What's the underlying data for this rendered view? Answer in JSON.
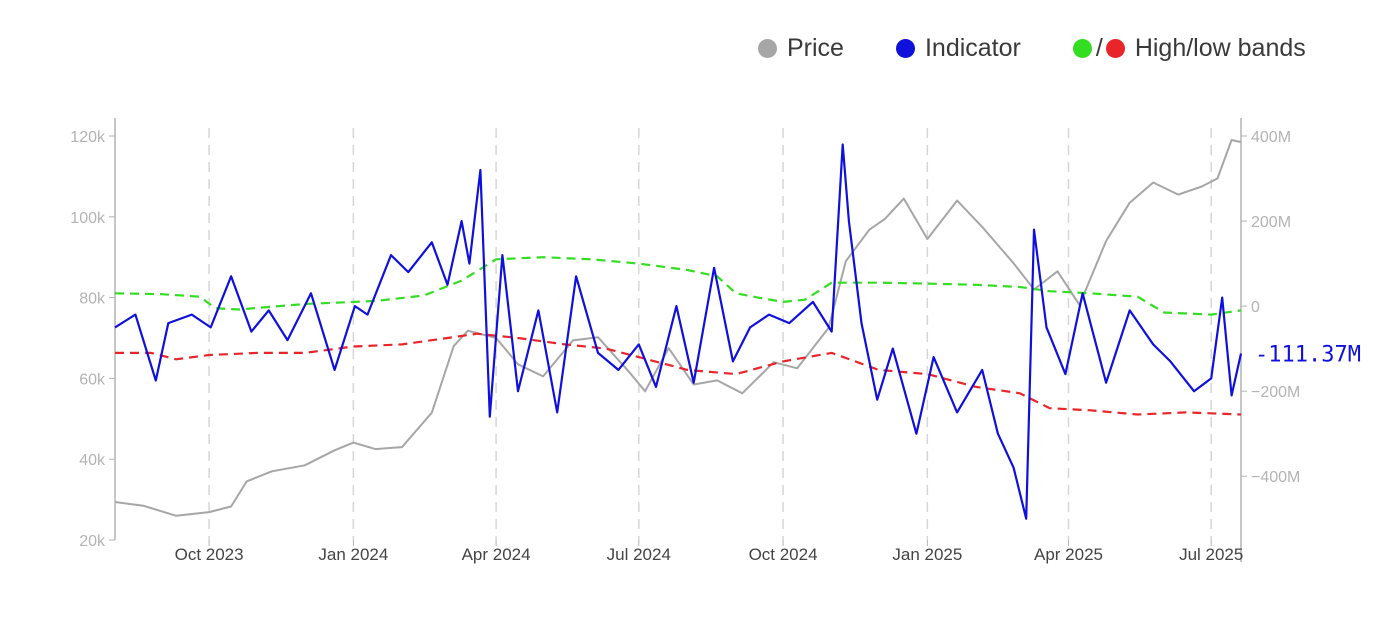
{
  "legend": {
    "price": "Price",
    "indicator": "Indicator",
    "bands": "High/low bands",
    "bands_sep": "/"
  },
  "colors": {
    "price": "#a6a6a6",
    "indicator": "#1010dd",
    "high_band": "#33dd22",
    "low_band": "#e8262a",
    "grid": "#d6d6d6",
    "axis": "#b3b3b3"
  },
  "chart_data": {
    "type": "line",
    "x_tick_labels": [
      "Oct 2023",
      "Jan 2024",
      "Apr 2024",
      "Jul 2024",
      "Oct 2024",
      "Jan 2025",
      "Apr 2025",
      "Jul 2025"
    ],
    "x_ticks": [
      "2023-10-01",
      "2024-01-01",
      "2024-04-01",
      "2024-07-01",
      "2024-10-01",
      "2025-01-01",
      "2025-04-01",
      "2025-07-01"
    ],
    "x_range": [
      "2023-08-02",
      "2025-07-20"
    ],
    "grid": "vertical dashed at x ticks",
    "legend_position": "top-right",
    "y_left": {
      "label": "Price",
      "range": [
        20000,
        120000
      ],
      "ticks": [
        20000,
        40000,
        60000,
        80000,
        100000,
        120000
      ],
      "tick_labels": [
        "20k",
        "40k",
        "60k",
        "80k",
        "100k",
        "120k"
      ]
    },
    "y_right": {
      "label": "Indicator",
      "range": [
        -550000000,
        400000000
      ],
      "ticks": [
        -400000000,
        -200000000,
        0,
        200000000,
        400000000
      ],
      "tick_labels": [
        "−400M",
        "−200M",
        "0",
        "200M",
        "400M"
      ]
    },
    "last_value_label": "-111.37M",
    "series": [
      {
        "name": "Price",
        "axis": "left",
        "x": [
          "2023-08-02",
          "2023-08-20",
          "2023-09-10",
          "2023-10-01",
          "2023-10-15",
          "2023-10-25",
          "2023-11-10",
          "2023-12-01",
          "2023-12-20",
          "2024-01-01",
          "2024-01-15",
          "2024-02-01",
          "2024-02-20",
          "2024-03-05",
          "2024-03-14",
          "2024-04-01",
          "2024-04-15",
          "2024-05-01",
          "2024-05-20",
          "2024-06-05",
          "2024-06-25",
          "2024-07-05",
          "2024-07-20",
          "2024-08-05",
          "2024-08-20",
          "2024-09-05",
          "2024-09-25",
          "2024-10-10",
          "2024-10-30",
          "2024-11-10",
          "2024-11-25",
          "2024-12-05",
          "2024-12-17",
          "2025-01-01",
          "2025-01-20",
          "2025-02-05",
          "2025-02-25",
          "2025-03-10",
          "2025-03-25",
          "2025-04-08",
          "2025-04-25",
          "2025-05-10",
          "2025-05-25",
          "2025-06-10",
          "2025-06-25",
          "2025-07-05",
          "2025-07-14",
          "2025-07-20"
        ],
        "values": [
          29400,
          28500,
          26000,
          26900,
          28300,
          34500,
          37000,
          38500,
          42200,
          44100,
          42500,
          43000,
          51500,
          68000,
          71800,
          70000,
          63500,
          60500,
          69400,
          70200,
          61500,
          56800,
          67500,
          58500,
          59500,
          56300,
          64000,
          62500,
          72500,
          89000,
          96800,
          99500,
          104500,
          94500,
          104000,
          97500,
          88500,
          82000,
          86500,
          78200,
          94000,
          103500,
          108500,
          105500,
          107500,
          109500,
          119000,
          118500
        ]
      },
      {
        "name": "Indicator",
        "axis": "right",
        "x": [
          "2023-08-02",
          "2023-08-15",
          "2023-08-28",
          "2023-09-05",
          "2023-09-20",
          "2023-10-02",
          "2023-10-15",
          "2023-10-28",
          "2023-11-08",
          "2023-11-20",
          "2023-12-05",
          "2023-12-20",
          "2024-01-02",
          "2024-01-10",
          "2024-01-25",
          "2024-02-05",
          "2024-02-20",
          "2024-03-01",
          "2024-03-10",
          "2024-03-15",
          "2024-03-22",
          "2024-03-28",
          "2024-04-05",
          "2024-04-15",
          "2024-04-28",
          "2024-05-10",
          "2024-05-22",
          "2024-06-05",
          "2024-06-18",
          "2024-07-01",
          "2024-07-12",
          "2024-07-25",
          "2024-08-05",
          "2024-08-18",
          "2024-08-30",
          "2024-09-10",
          "2024-09-22",
          "2024-10-05",
          "2024-10-20",
          "2024-11-01",
          "2024-11-08",
          "2024-11-12",
          "2024-11-20",
          "2024-11-30",
          "2024-12-10",
          "2024-12-25",
          "2025-01-05",
          "2025-01-20",
          "2025-02-05",
          "2025-02-15",
          "2025-02-25",
          "2025-03-05",
          "2025-03-10",
          "2025-03-18",
          "2025-03-30",
          "2025-04-10",
          "2025-04-25",
          "2025-05-10",
          "2025-05-25",
          "2025-06-05",
          "2025-06-20",
          "2025-07-01",
          "2025-07-08",
          "2025-07-14",
          "2025-07-20"
        ],
        "values": [
          -50000000,
          -20000000,
          -175000000,
          -40000000,
          -20000000,
          -50000000,
          70000000,
          -60000000,
          -10000000,
          -80000000,
          30000000,
          -150000000,
          0,
          -20000000,
          120000000,
          80000000,
          150000000,
          50000000,
          200000000,
          100000000,
          320000000,
          -260000000,
          120000000,
          -200000000,
          -10000000,
          -250000000,
          70000000,
          -110000000,
          -150000000,
          -90000000,
          -190000000,
          0,
          -180000000,
          90000000,
          -130000000,
          -50000000,
          -20000000,
          -40000000,
          10000000,
          -60000000,
          380000000,
          200000000,
          -40000000,
          -220000000,
          -100000000,
          -300000000,
          -120000000,
          -250000000,
          -150000000,
          -300000000,
          -380000000,
          -500000000,
          180000000,
          -50000000,
          -160000000,
          30000000,
          -180000000,
          -10000000,
          -90000000,
          -130000000,
          -200000000,
          -170000000,
          20000000,
          -210000000,
          -111370000
        ]
      },
      {
        "name": "High band",
        "axis": "right",
        "x": [
          "2023-08-02",
          "2023-09-01",
          "2023-09-25",
          "2023-10-05",
          "2023-10-20",
          "2023-12-01",
          "2024-01-15",
          "2024-02-15",
          "2024-03-10",
          "2024-04-01",
          "2024-05-01",
          "2024-06-01",
          "2024-07-01",
          "2024-08-01",
          "2024-08-20",
          "2024-09-01",
          "2024-09-15",
          "2024-10-01",
          "2024-10-15",
          "2024-11-01",
          "2024-12-01",
          "2025-01-01",
          "2025-02-01",
          "2025-03-01",
          "2025-03-20",
          "2025-04-15",
          "2025-05-15",
          "2025-06-01",
          "2025-07-01",
          "2025-07-20"
        ],
        "values": [
          30000000,
          28000000,
          22000000,
          -5000000,
          -8000000,
          5000000,
          12000000,
          25000000,
          60000000,
          110000000,
          115000000,
          110000000,
          100000000,
          85000000,
          70000000,
          30000000,
          20000000,
          10000000,
          15000000,
          55000000,
          55000000,
          53000000,
          50000000,
          45000000,
          35000000,
          30000000,
          22000000,
          -15000000,
          -20000000,
          -10000000
        ]
      },
      {
        "name": "Low band",
        "axis": "right",
        "x": [
          "2023-08-02",
          "2023-08-25",
          "2023-09-10",
          "2023-10-01",
          "2023-11-01",
          "2023-12-01",
          "2024-01-01",
          "2024-02-01",
          "2024-03-01",
          "2024-03-20",
          "2024-04-15",
          "2024-05-15",
          "2024-06-10",
          "2024-07-01",
          "2024-08-01",
          "2024-09-01",
          "2024-10-01",
          "2024-11-01",
          "2024-12-01",
          "2025-01-01",
          "2025-02-01",
          "2025-03-01",
          "2025-03-20",
          "2025-04-15",
          "2025-05-15",
          "2025-06-15",
          "2025-07-20"
        ],
        "values": [
          -110000000,
          -110000000,
          -125000000,
          -115000000,
          -110000000,
          -110000000,
          -95000000,
          -90000000,
          -75000000,
          -65000000,
          -75000000,
          -90000000,
          -100000000,
          -120000000,
          -150000000,
          -160000000,
          -130000000,
          -110000000,
          -150000000,
          -160000000,
          -190000000,
          -205000000,
          -240000000,
          -245000000,
          -255000000,
          -250000000,
          -255000000
        ]
      }
    ]
  }
}
